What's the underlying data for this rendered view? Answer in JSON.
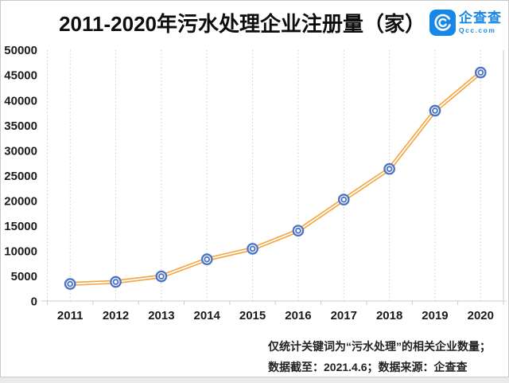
{
  "header": {
    "title": "2011-2020年污水处理企业注册量（家）",
    "logo": {
      "name": "企查查",
      "domain": "Qcc.com",
      "icon": "qcc-at-circle-icon",
      "color": "#1787E8"
    }
  },
  "chart_data": {
    "type": "line",
    "title": "2011-2020年污水处理企业注册量（家）",
    "categories": [
      "2011",
      "2012",
      "2013",
      "2014",
      "2015",
      "2016",
      "2017",
      "2018",
      "2019",
      "2020"
    ],
    "series": [
      {
        "name": "污水处理企业注册量",
        "values": [
          3400,
          3800,
          4900,
          8300,
          10400,
          14000,
          20200,
          26300,
          37900,
          45500
        ]
      }
    ],
    "xlabel": "",
    "ylabel": "",
    "ylim": [
      0,
      50000
    ],
    "ytick_interval": 5000,
    "grid": "vertical-dotted-only",
    "legend": "none",
    "line_color": "#F5A53F",
    "line_style": "double-stroke",
    "marker": "double-ring-circle",
    "marker_color": "#4C73C4",
    "axis_color": "#cccccc",
    "label_color": "#1a1a1a"
  },
  "footer": {
    "line1": "仅统计关键词为“污水处理”的相关企业数量；",
    "line2": "数据截至：2021.4.6；数据来源：企查查"
  }
}
